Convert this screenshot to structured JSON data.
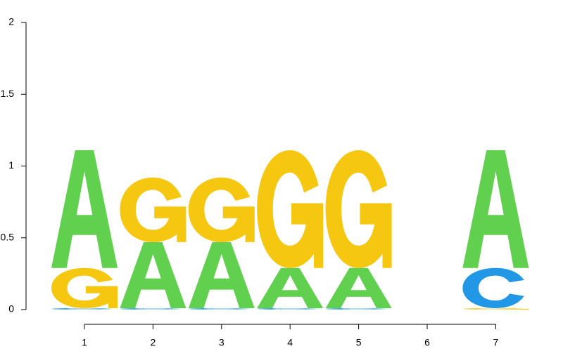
{
  "chart_data": {
    "type": "sequence_logo",
    "positions": [
      1,
      2,
      3,
      4,
      5,
      6,
      7
    ],
    "ylim": [
      0,
      2
    ],
    "y_ticks": [
      0,
      0.5,
      1,
      1.5,
      2
    ],
    "y_tick_labels": [
      "0",
      "0.5",
      "1",
      "1.5",
      "2"
    ],
    "x_tick_labels": [
      "1",
      "2",
      "3",
      "4",
      "5",
      "6",
      "7"
    ],
    "colors": {
      "A": "#61d04f",
      "C": "#2297e6",
      "G": "#f5c710",
      "T": "#df536b"
    },
    "stacks": [
      {
        "position": 1,
        "letters": [
          {
            "base": "C",
            "height": 0.01
          },
          {
            "base": "G",
            "height": 0.28
          },
          {
            "base": "A",
            "height": 0.82
          }
        ]
      },
      {
        "position": 2,
        "letters": [
          {
            "base": "C",
            "height": 0.01
          },
          {
            "base": "A",
            "height": 0.46
          },
          {
            "base": "G",
            "height": 0.45
          }
        ]
      },
      {
        "position": 3,
        "letters": [
          {
            "base": "C",
            "height": 0.01
          },
          {
            "base": "A",
            "height": 0.46
          },
          {
            "base": "G",
            "height": 0.45
          }
        ]
      },
      {
        "position": 4,
        "letters": [
          {
            "base": "C",
            "height": 0.01
          },
          {
            "base": "A",
            "height": 0.28
          },
          {
            "base": "G",
            "height": 0.82
          }
        ]
      },
      {
        "position": 5,
        "letters": [
          {
            "base": "C",
            "height": 0.01
          },
          {
            "base": "A",
            "height": 0.28
          },
          {
            "base": "G",
            "height": 0.82
          }
        ]
      },
      {
        "position": 6,
        "letters": []
      },
      {
        "position": 7,
        "letters": [
          {
            "base": "G",
            "height": 0.01
          },
          {
            "base": "C",
            "height": 0.28
          },
          {
            "base": "A",
            "height": 0.82
          }
        ]
      }
    ]
  }
}
